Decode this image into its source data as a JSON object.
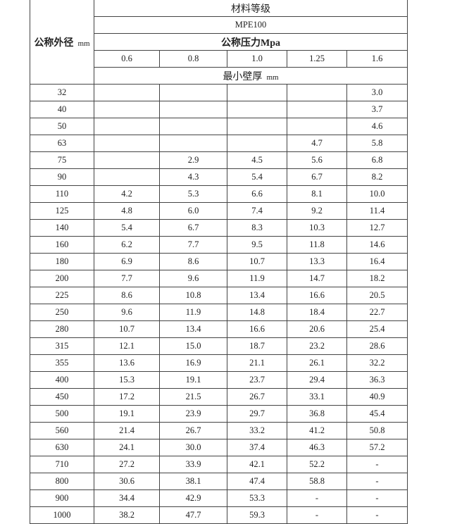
{
  "header": {
    "material_grade": "材料等级",
    "material": "MPE100",
    "diameter_label": "公称外径",
    "diameter_unit": "mm",
    "pressure_label": "公称压力Mpa",
    "pressures": [
      "0.6",
      "0.8",
      "1.0",
      "1.25",
      "1.6"
    ],
    "thickness_label": "最小壁厚",
    "thickness_unit": "mm"
  },
  "table": {
    "rows": [
      [
        "32",
        null,
        null,
        null,
        null,
        "3.0"
      ],
      [
        "40",
        null,
        null,
        null,
        null,
        "3.7"
      ],
      [
        "50",
        null,
        null,
        null,
        null,
        "4.6"
      ],
      [
        "63",
        null,
        null,
        null,
        "4.7",
        "5.8"
      ],
      [
        "75",
        null,
        "2.9",
        "4.5",
        "5.6",
        "6.8"
      ],
      [
        "90",
        null,
        "4.3",
        "5.4",
        "6.7",
        "8.2"
      ],
      [
        "110",
        "4.2",
        "5.3",
        "6.6",
        "8.1",
        "10.0"
      ],
      [
        "125",
        "4.8",
        "6.0",
        "7.4",
        "9.2",
        "11.4"
      ],
      [
        "140",
        "5.4",
        "6.7",
        "8.3",
        "10.3",
        "12.7"
      ],
      [
        "160",
        "6.2",
        "7.7",
        "9.5",
        "11.8",
        "14.6"
      ],
      [
        "180",
        "6.9",
        "8.6",
        "10.7",
        "13.3",
        "16.4"
      ],
      [
        "200",
        "7.7",
        "9.6",
        "11.9",
        "14.7",
        "18.2"
      ],
      [
        "225",
        "8.6",
        "10.8",
        "13.4",
        "16.6",
        "20.5"
      ],
      [
        "250",
        "9.6",
        "11.9",
        "14.8",
        "18.4",
        "22.7"
      ],
      [
        "280",
        "10.7",
        "13.4",
        "16.6",
        "20.6",
        "25.4"
      ],
      [
        "315",
        "12.1",
        "15.0",
        "18.7",
        "23.2",
        "28.6"
      ],
      [
        "355",
        "13.6",
        "16.9",
        "21.1",
        "26.1",
        "32.2"
      ],
      [
        "400",
        "15.3",
        "19.1",
        "23.7",
        "29.4",
        "36.3"
      ],
      [
        "450",
        "17.2",
        "21.5",
        "26.7",
        "33.1",
        "40.9"
      ],
      [
        "500",
        "19.1",
        "23.9",
        "29.7",
        "36.8",
        "45.4"
      ],
      [
        "560",
        "21.4",
        "26.7",
        "33.2",
        "41.2",
        "50.8"
      ],
      [
        "630",
        "24.1",
        "30.0",
        "37.4",
        "46.3",
        "57.2"
      ],
      [
        "710",
        "27.2",
        "33.9",
        "42.1",
        "52.2",
        "-"
      ],
      [
        "800",
        "30.6",
        "38.1",
        "47.4",
        "58.8",
        "-"
      ],
      [
        "900",
        "34.4",
        "42.9",
        "53.3",
        "-",
        "-"
      ],
      [
        "1000",
        "38.2",
        "47.7",
        "59.3",
        "-",
        "-"
      ]
    ]
  }
}
